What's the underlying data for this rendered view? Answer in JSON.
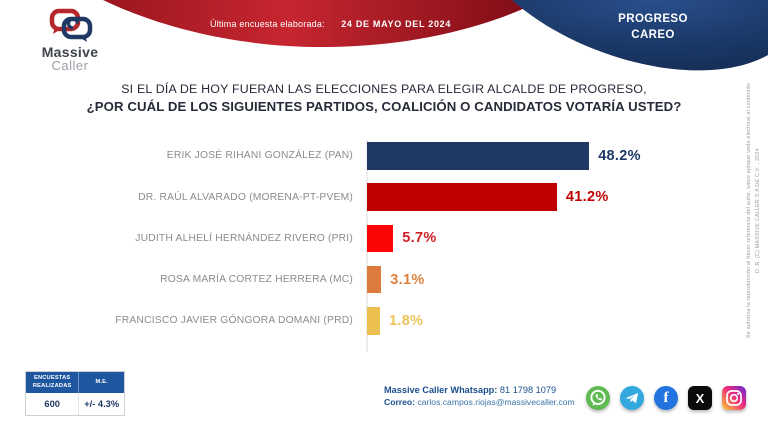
{
  "header": {
    "logo": {
      "brand_top": "Massive",
      "brand_bottom": "Caller"
    },
    "banner": {
      "label": "Última encuesta elaborada:",
      "date": "24 DE MAYO DEL 2024"
    },
    "region_badge": {
      "line1": "PROGRESO",
      "line2": "CAREO"
    }
  },
  "title": {
    "line1": "SI EL DÍA DE HOY FUERAN LAS ELECCIONES PARA ELEGIR ALCALDE DE PROGRESO,",
    "line2": "¿POR CUÁL DE LOS SIGUIENTES PARTIDOS, COALICIÓN O CANDIDATOS VOTARÍA USTED?"
  },
  "chart_data": {
    "type": "bar",
    "orientation": "horizontal",
    "title": "Intención de voto alcalde de Progreso",
    "categories": [
      "ERIK JOSÉ RIHANI GONZÁLEZ (PAN)",
      "DR. RAÚL ALVARADO (MORENA-PT-PVEM)",
      "JUDITH ALHELÍ HERNÁNDEZ RIVERO (PRI)",
      "ROSA MARÍA CORTEZ HERRERA (MC)",
      "FRANCISCO JAVIER GÓNGORA DOMANI (PRD)"
    ],
    "values": [
      48.2,
      41.2,
      5.7,
      3.1,
      1.8
    ],
    "value_labels": [
      "48.2%",
      "41.2%",
      "5.7%",
      "3.1%",
      "1.8%"
    ],
    "bar_colors": [
      "#1f3864",
      "#c00000",
      "#fb0505",
      "#dd7b3e",
      "#ecc04f"
    ],
    "value_label_colors": [
      "#1f3864",
      "#c00000",
      "#cf2328",
      "#e0823f",
      "#eec45a"
    ],
    "xlim": [
      0,
      50
    ],
    "grid": false,
    "legend": false
  },
  "stats_table": {
    "headers": [
      "ENCUESTAS REALIZADAS",
      "M.E."
    ],
    "rows": [
      [
        "600",
        "+/- 4.3%"
      ]
    ]
  },
  "footer": {
    "whatsapp_label": "Massive Caller Whatsapp:",
    "whatsapp_number": "81 1798 1079",
    "email_label": "Correo:",
    "email": "carlos.campos.riojas@massivecaller.com",
    "social": [
      "whatsapp",
      "telegram",
      "facebook",
      "x",
      "instagram"
    ],
    "facebook_glyph": "f",
    "x_glyph": "X"
  },
  "legal": {
    "copyright": "D. R. (C) MASSIVE CALLER S.A DE C.V. , 2024",
    "note": "Se autoriza la reproducción al hacer referencia del autor, salvo aplique veda electoral al contenido"
  },
  "colors": {
    "ribbon_red_dark": "#7c0c15",
    "ribbon_red_bright": "#c62630",
    "badge_navy": "#1a3866",
    "table_header_blue": "#1e56a0",
    "title_text": "#272b39",
    "label_gray": "#8c8c8c"
  }
}
